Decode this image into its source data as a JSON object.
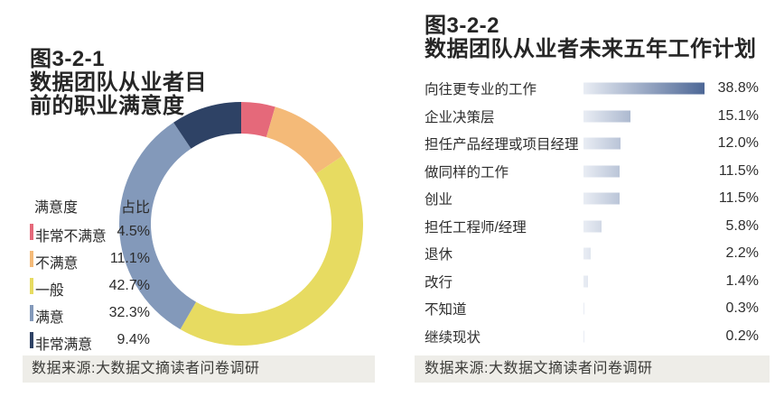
{
  "chart_data": [
    {
      "type": "donut",
      "title": "图3-2-1\n数据团队从业者目\n前的职业满意度",
      "legend_headers": [
        "满意度",
        "占比"
      ],
      "categories": [
        "非常不满意",
        "不满意",
        "一般",
        "满意",
        "非常满意"
      ],
      "values": [
        4.5,
        11.1,
        42.7,
        32.3,
        9.4
      ],
      "value_labels": [
        "4.5%",
        "11.1%",
        "42.7%",
        "32.3%",
        "9.4%"
      ],
      "colors": [
        "#e5697a",
        "#f4ba78",
        "#e7db61",
        "#8399ba",
        "#2e4265"
      ],
      "start_angle_deg": 0,
      "direction": "clockwise",
      "source": "数据来源:大数据文摘读者问卷调研"
    },
    {
      "type": "bar",
      "title": "图3-2-2\n数据团队从业者未来五年工作计划",
      "categories": [
        "向往更专业的工作",
        "企业决策层",
        "担任产品经理或项目经理",
        "做同样的工作",
        "创业",
        "担任工程师/经理",
        "退休",
        "改行",
        "不知道",
        "继续现状"
      ],
      "values": [
        38.8,
        15.1,
        12.0,
        11.5,
        11.5,
        5.8,
        2.2,
        1.4,
        0.3,
        0.2
      ],
      "value_labels": [
        "38.8%",
        "15.1%",
        "12.0%",
        "11.5%",
        "11.5%",
        "5.8%",
        "2.2%",
        "1.4%",
        "0.3%",
        "0.2%"
      ],
      "xlim": [
        0,
        38.8
      ],
      "orientation": "horizontal",
      "bar_gradient": [
        "#e9edf4",
        "#4d6796"
      ],
      "source": "数据来源:大数据文摘读者问卷调研"
    }
  ]
}
